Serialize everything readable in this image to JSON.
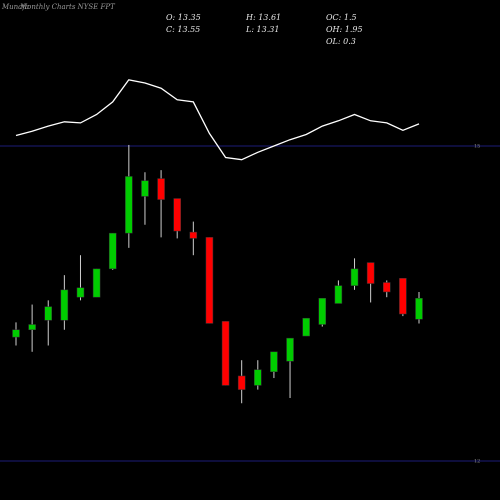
{
  "chart_data": {
    "type": "candlestick",
    "brand": "Munafa",
    "title": "Monthly Charts NYSE FPT",
    "stats": [
      "O: 13.35",
      "C: 13.55",
      "H: 13.61",
      "L: 13.31",
      "OC: 1.5",
      "OH: 1.95",
      "OL: 0.3"
    ],
    "ylim": [
      12,
      15
    ],
    "yticks": [
      15,
      12
    ],
    "grid": true,
    "up_color": "#00cc00",
    "down_color": "#ff0000",
    "wick_color": "#cfcfcf",
    "grid_color": "#1c1c78",
    "line_color": "#ffffff",
    "open": [
      13.18,
      13.25,
      13.34,
      13.34,
      13.56,
      13.56,
      13.83,
      14.17,
      14.52,
      14.69,
      14.5,
      14.18,
      14.13,
      13.33,
      12.81,
      12.72,
      12.85,
      12.95,
      13.19,
      13.3,
      13.5,
      13.67,
      13.89,
      13.7,
      13.74,
      13.35
    ],
    "high": [
      13.32,
      13.49,
      13.53,
      13.77,
      13.96,
      13.83,
      14.17,
      15.01,
      14.75,
      14.77,
      14.5,
      14.28,
      14.13,
      13.33,
      12.96,
      12.96,
      13.04,
      13.17,
      13.36,
      13.55,
      13.72,
      13.93,
      13.89,
      13.72,
      13.74,
      13.61
    ],
    "low": [
      13.1,
      13.04,
      13.1,
      13.25,
      13.53,
      13.56,
      13.82,
      14.03,
      14.25,
      14.13,
      14.12,
      13.96,
      13.31,
      12.72,
      12.55,
      12.68,
      12.79,
      12.6,
      13.19,
      13.28,
      13.5,
      13.63,
      13.51,
      13.56,
      13.38,
      13.31
    ],
    "close": [
      13.25,
      13.3,
      13.47,
      13.63,
      13.65,
      13.83,
      14.17,
      14.71,
      14.67,
      14.49,
      14.19,
      14.12,
      13.31,
      12.72,
      12.68,
      12.87,
      13.04,
      13.17,
      13.36,
      13.55,
      13.67,
      13.83,
      13.69,
      13.61,
      13.4,
      13.55
    ],
    "line": [
      15.1,
      15.14,
      15.19,
      15.23,
      15.22,
      15.3,
      15.42,
      15.63,
      15.6,
      15.55,
      15.44,
      15.42,
      15.12,
      14.89,
      14.87,
      14.94,
      15.0,
      15.06,
      15.11,
      15.19,
      15.24,
      15.3,
      15.24,
      15.22,
      15.15,
      15.21
    ]
  }
}
